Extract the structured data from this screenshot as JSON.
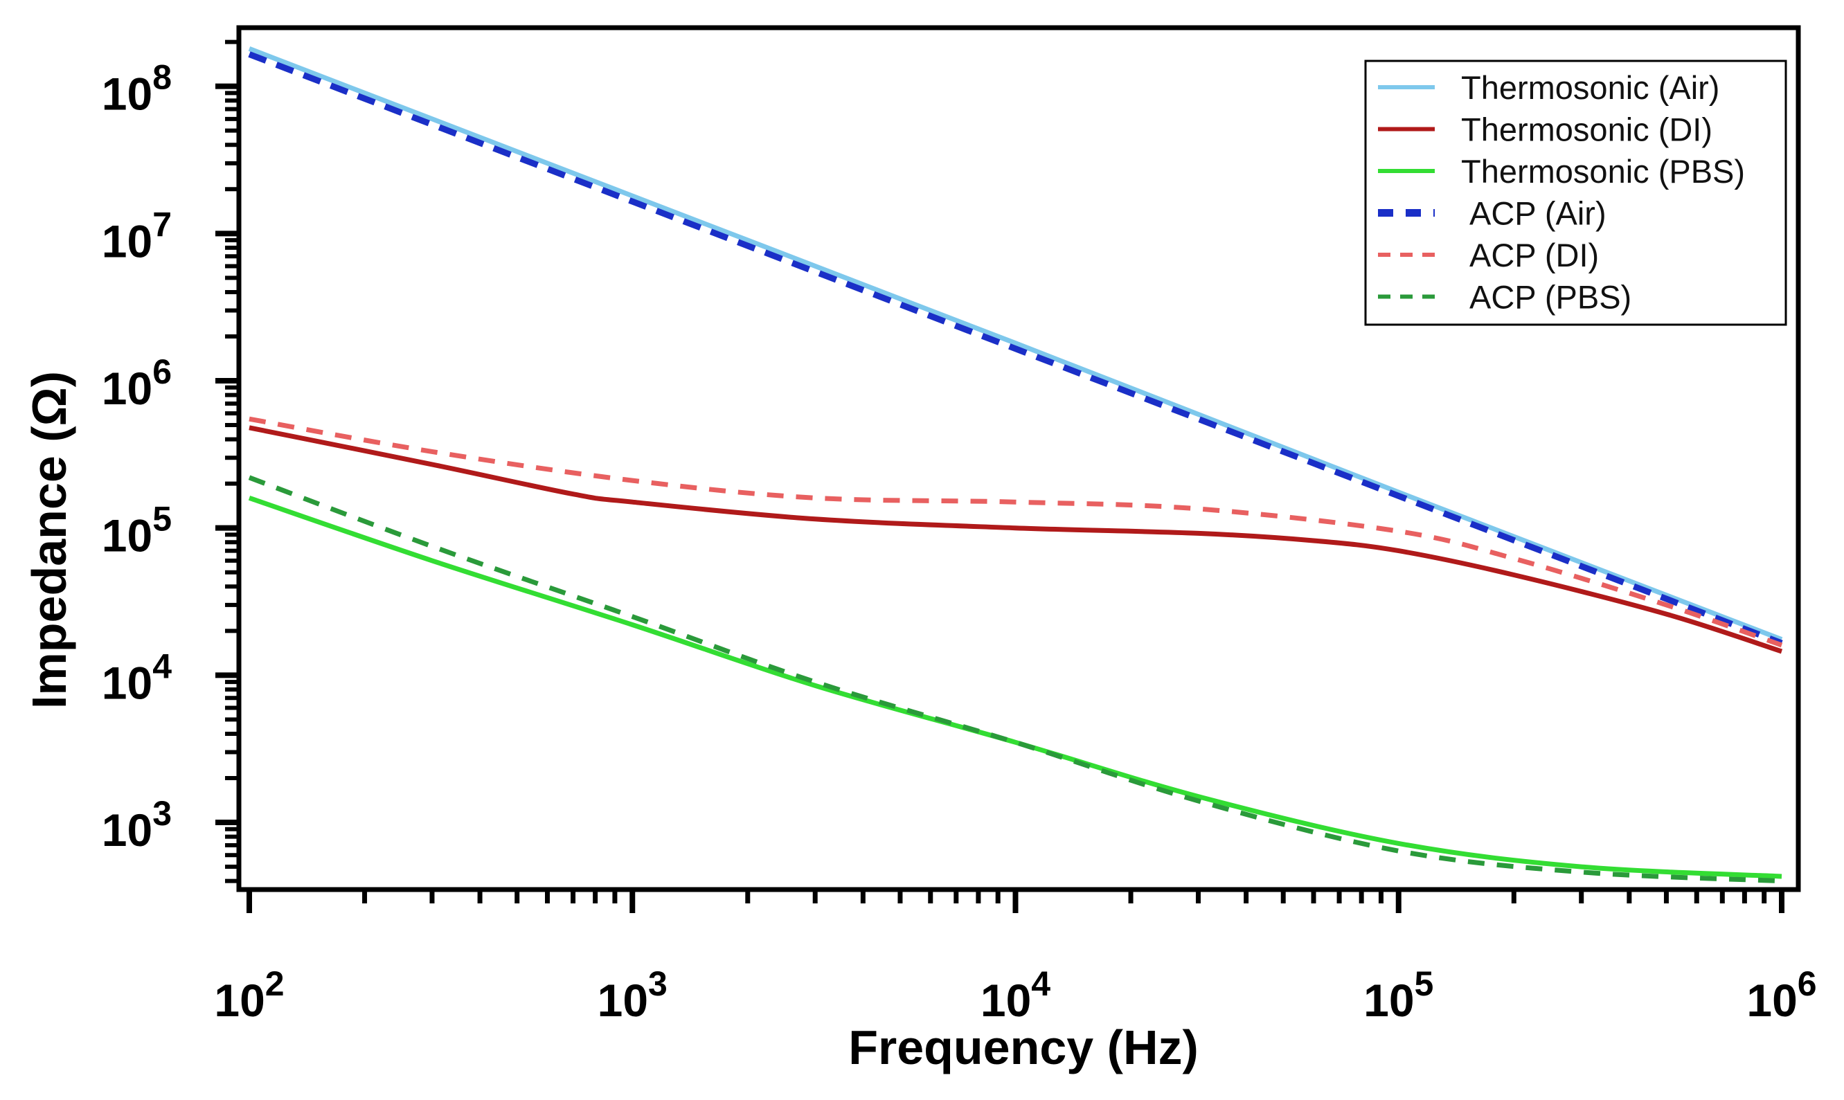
{
  "chart_data": {
    "type": "line",
    "xlabel": "Frequency (Hz)",
    "ylabel": "Impedance (Ω)",
    "xscale": "log",
    "yscale": "log",
    "xlim": [
      100,
      1000000
    ],
    "ylim": [
      350,
      250000000
    ],
    "grid": false,
    "legend_position": "top-right",
    "x_ticks": [
      {
        "value": 100,
        "base": "10",
        "exp": "2"
      },
      {
        "value": 1000,
        "base": "10",
        "exp": "3"
      },
      {
        "value": 10000,
        "base": "10",
        "exp": "4"
      },
      {
        "value": 100000,
        "base": "10",
        "exp": "5"
      },
      {
        "value": 1000000,
        "base": "10",
        "exp": "6"
      }
    ],
    "y_ticks": [
      {
        "value": 1000,
        "base": "10",
        "exp": "3"
      },
      {
        "value": 10000,
        "base": "10",
        "exp": "4"
      },
      {
        "value": 100000,
        "base": "10",
        "exp": "5"
      },
      {
        "value": 1000000,
        "base": "10",
        "exp": "6"
      },
      {
        "value": 10000000,
        "base": "10",
        "exp": "7"
      },
      {
        "value": 100000000,
        "base": "10",
        "exp": "8"
      }
    ],
    "series": [
      {
        "name": "Thermosonic (Air)",
        "color": "#7ec8ec",
        "dash": "solid",
        "x": [
          100,
          1000,
          10000,
          100000,
          1000000
        ],
        "y": [
          180000000,
          18000000,
          1800000,
          175000,
          17500
        ]
      },
      {
        "name": "Thermosonic (DI)",
        "color": "#b01a1a",
        "dash": "solid",
        "x": [
          100,
          300,
          700,
          1000,
          3000,
          10000,
          30000,
          60000,
          100000,
          200000,
          500000,
          1000000
        ],
        "y": [
          480000,
          270000,
          170000,
          150000,
          115000,
          100000,
          92000,
          82000,
          70000,
          48000,
          26000,
          14500
        ]
      },
      {
        "name": "Thermosonic (PBS)",
        "color": "#33dd33",
        "dash": "solid",
        "x": [
          100,
          300,
          1000,
          3000,
          10000,
          30000,
          100000,
          300000,
          1000000
        ],
        "y": [
          160000,
          60000,
          22000,
          8500,
          3500,
          1500,
          720,
          500,
          430
        ]
      },
      {
        "name": "ACP (Air)",
        "color": "#1a2fc7",
        "dash": "heavy-dash",
        "x": [
          100,
          1000,
          10000,
          100000,
          1000000
        ],
        "y": [
          165000000,
          16500000,
          1650000,
          165000,
          16500
        ]
      },
      {
        "name": "ACP (DI)",
        "color": "#e86060",
        "dash": "dash",
        "x": [
          100,
          300,
          1000,
          3000,
          10000,
          30000,
          100000,
          200000,
          500000,
          1000000
        ],
        "y": [
          550000,
          330000,
          210000,
          160000,
          150000,
          135000,
          95000,
          62000,
          30000,
          16000
        ]
      },
      {
        "name": "ACP (PBS)",
        "color": "#2a9a3a",
        "dash": "dash",
        "x": [
          100,
          300,
          1000,
          3000,
          10000,
          30000,
          100000,
          300000,
          1000000
        ],
        "y": [
          220000,
          75000,
          25000,
          9000,
          3500,
          1400,
          640,
          460,
          400
        ]
      }
    ]
  }
}
